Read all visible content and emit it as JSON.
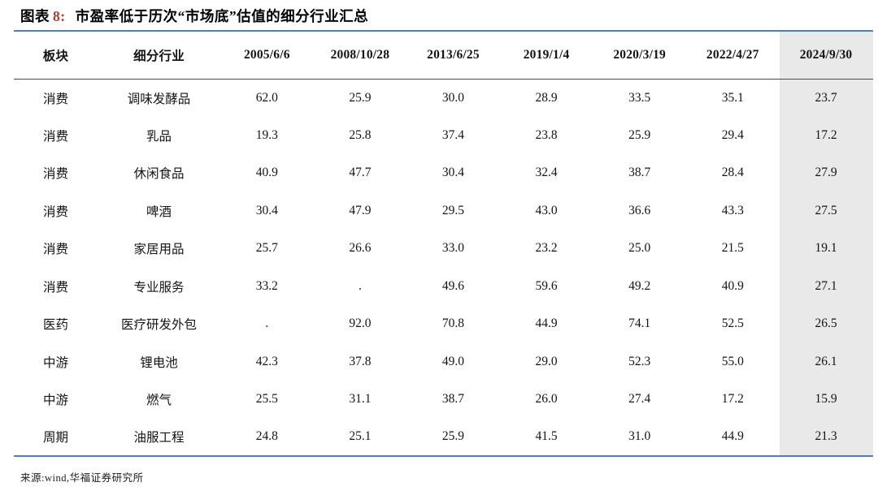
{
  "title": {
    "figure_label": "图表",
    "figure_number": "8:",
    "text": "市盈率低于历次“市场底”估值的细分行业汇总"
  },
  "table": {
    "columns": [
      "板块",
      "细分行业",
      "2005/6/6",
      "2008/10/28",
      "2013/6/25",
      "2019/1/4",
      "2020/3/19",
      "2022/4/27",
      "2024/9/30"
    ],
    "highlight_column": "2024/9/30",
    "rows": [
      [
        "消费",
        "调味发酵品",
        "62.0",
        "25.9",
        "30.0",
        "28.9",
        "33.5",
        "35.1",
        "23.7"
      ],
      [
        "消费",
        "乳品",
        "19.3",
        "25.8",
        "37.4",
        "23.8",
        "25.9",
        "29.4",
        "17.2"
      ],
      [
        "消费",
        "休闲食品",
        "40.9",
        "47.7",
        "30.4",
        "32.4",
        "38.7",
        "28.4",
        "27.9"
      ],
      [
        "消费",
        "啤酒",
        "30.4",
        "47.9",
        "29.5",
        "43.0",
        "36.6",
        "43.3",
        "27.5"
      ],
      [
        "消费",
        "家居用品",
        "25.7",
        "26.6",
        "33.0",
        "23.2",
        "25.0",
        "21.5",
        "19.1"
      ],
      [
        "消费",
        "专业服务",
        "33.2",
        ".",
        "49.6",
        "59.6",
        "49.2",
        "40.9",
        "27.1"
      ],
      [
        "医药",
        "医疗研发外包",
        ".",
        "92.0",
        "70.8",
        "44.9",
        "74.1",
        "52.5",
        "26.5"
      ],
      [
        "中游",
        "锂电池",
        "42.3",
        "37.8",
        "49.0",
        "29.0",
        "52.3",
        "55.0",
        "26.1"
      ],
      [
        "中游",
        "燃气",
        "25.5",
        "31.1",
        "38.7",
        "26.0",
        "27.4",
        "17.2",
        "15.9"
      ],
      [
        "周期",
        "油服工程",
        "24.8",
        "25.1",
        "25.9",
        "41.5",
        "31.0",
        "44.9",
        "21.3"
      ]
    ]
  },
  "footer": {
    "source": "来源:wind,华福证券研究所"
  },
  "colors": {
    "accent_line": "#4d7ebd",
    "header_underline": "#4a4a4a",
    "highlight_bg": "#e9e9e9",
    "figure_number_color": "#a63f35"
  }
}
